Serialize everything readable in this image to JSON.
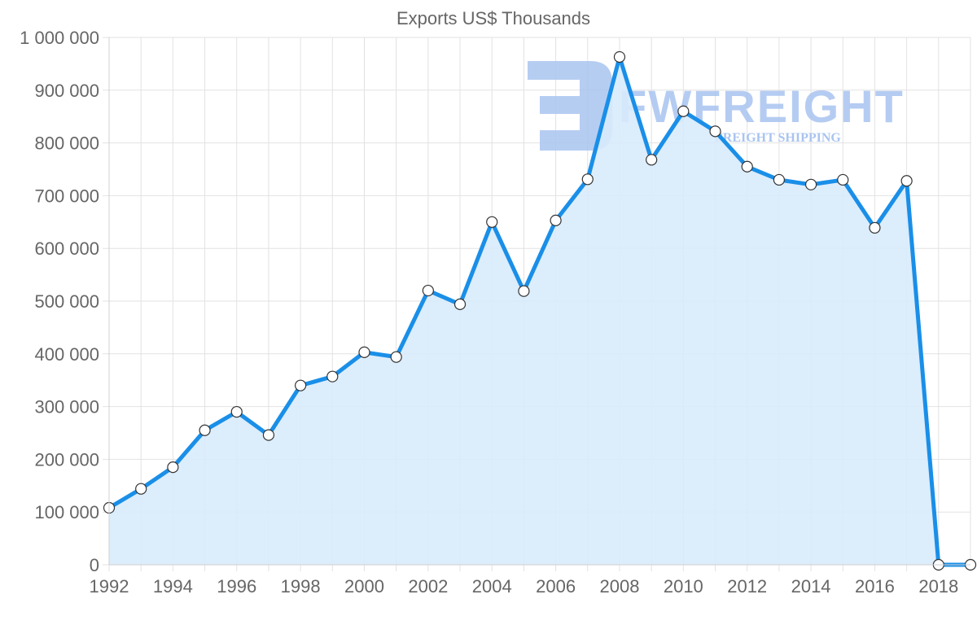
{
  "chart_data": {
    "type": "area",
    "title": "Exports US$ Thousands",
    "xlabel": "",
    "ylabel": "",
    "x": [
      1992,
      1993,
      1994,
      1995,
      1996,
      1997,
      1998,
      1999,
      2000,
      2001,
      2002,
      2003,
      2004,
      2005,
      2006,
      2007,
      2008,
      2009,
      2010,
      2011,
      2012,
      2013,
      2014,
      2015,
      2016,
      2017,
      2018,
      2019
    ],
    "series": [
      {
        "name": "Exports US$ Thousands",
        "values": [
          108000,
          144000,
          185000,
          255000,
          290000,
          246000,
          340000,
          357000,
          403000,
          394000,
          520000,
          494000,
          650000,
          519000,
          653000,
          731000,
          963000,
          768000,
          860000,
          822000,
          755000,
          730000,
          721000,
          730000,
          639000,
          728000,
          0,
          0
        ]
      }
    ],
    "ylim": [
      0,
      1000000
    ],
    "y_ticks": [
      "0",
      "100 000",
      "200 000",
      "300 000",
      "400 000",
      "500 000",
      "600 000",
      "700 000",
      "800 000",
      "900 000",
      "1 000 000"
    ],
    "x_tick_labels": [
      "1992",
      "1994",
      "1996",
      "1998",
      "2000",
      "2002",
      "2004",
      "2006",
      "2008",
      "2010",
      "2012",
      "2014",
      "2016",
      "2018"
    ],
    "grid": true,
    "legend": "none",
    "colors": {
      "line": "#1a8fe8",
      "fill": "#d8ebfc",
      "point_fill": "#ffffff",
      "point_stroke": "#333333"
    }
  },
  "watermark": {
    "brand": "FWFREIGHT",
    "tagline": "FREIGHT SHIPPING",
    "color": "#a9c4f0"
  }
}
